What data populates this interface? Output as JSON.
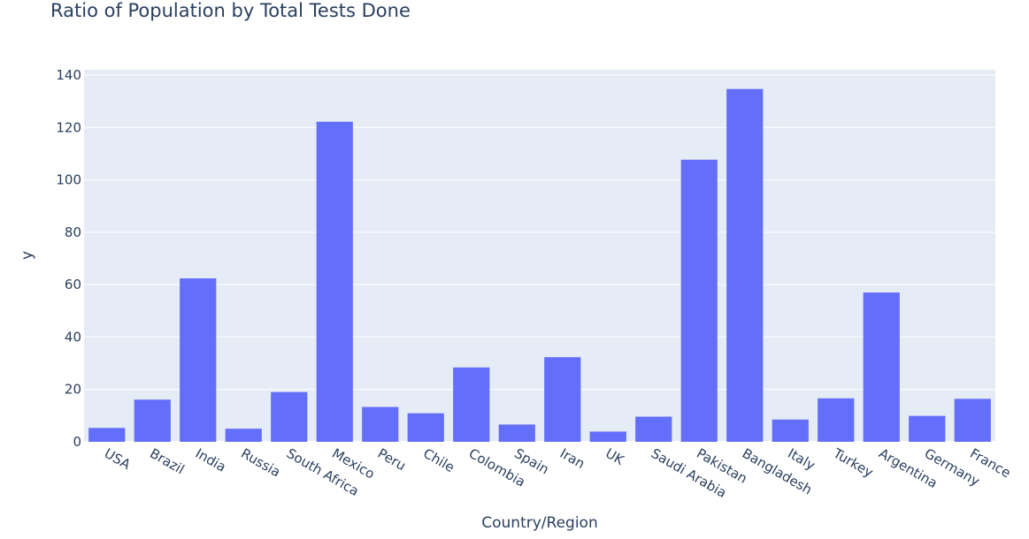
{
  "chart_data": {
    "type": "bar",
    "title": "Ratio of Population by Total Tests Done",
    "xlabel": "Country/Region",
    "ylabel": "y",
    "categories": [
      "USA",
      "Brazil",
      "India",
      "Russia",
      "South Africa",
      "Mexico",
      "Peru",
      "Chile",
      "Colombia",
      "Spain",
      "Iran",
      "UK",
      "Saudi Arabia",
      "Pakistan",
      "Bangladesh",
      "Italy",
      "Turkey",
      "Argentina",
      "Germany",
      "France"
    ],
    "values": [
      5.3,
      16.1,
      62.4,
      5.0,
      19.0,
      122.2,
      13.3,
      10.9,
      28.4,
      6.6,
      32.3,
      3.9,
      9.6,
      107.7,
      134.7,
      8.5,
      16.6,
      57.0,
      9.9,
      16.4
    ],
    "ylim": [
      0,
      140
    ],
    "yticks": [
      0,
      20,
      40,
      60,
      80,
      100,
      120,
      140
    ],
    "bar_color": "#636efa",
    "plot_background": "#e5ecf6",
    "grid": true,
    "xtick_rotation": "angled"
  }
}
